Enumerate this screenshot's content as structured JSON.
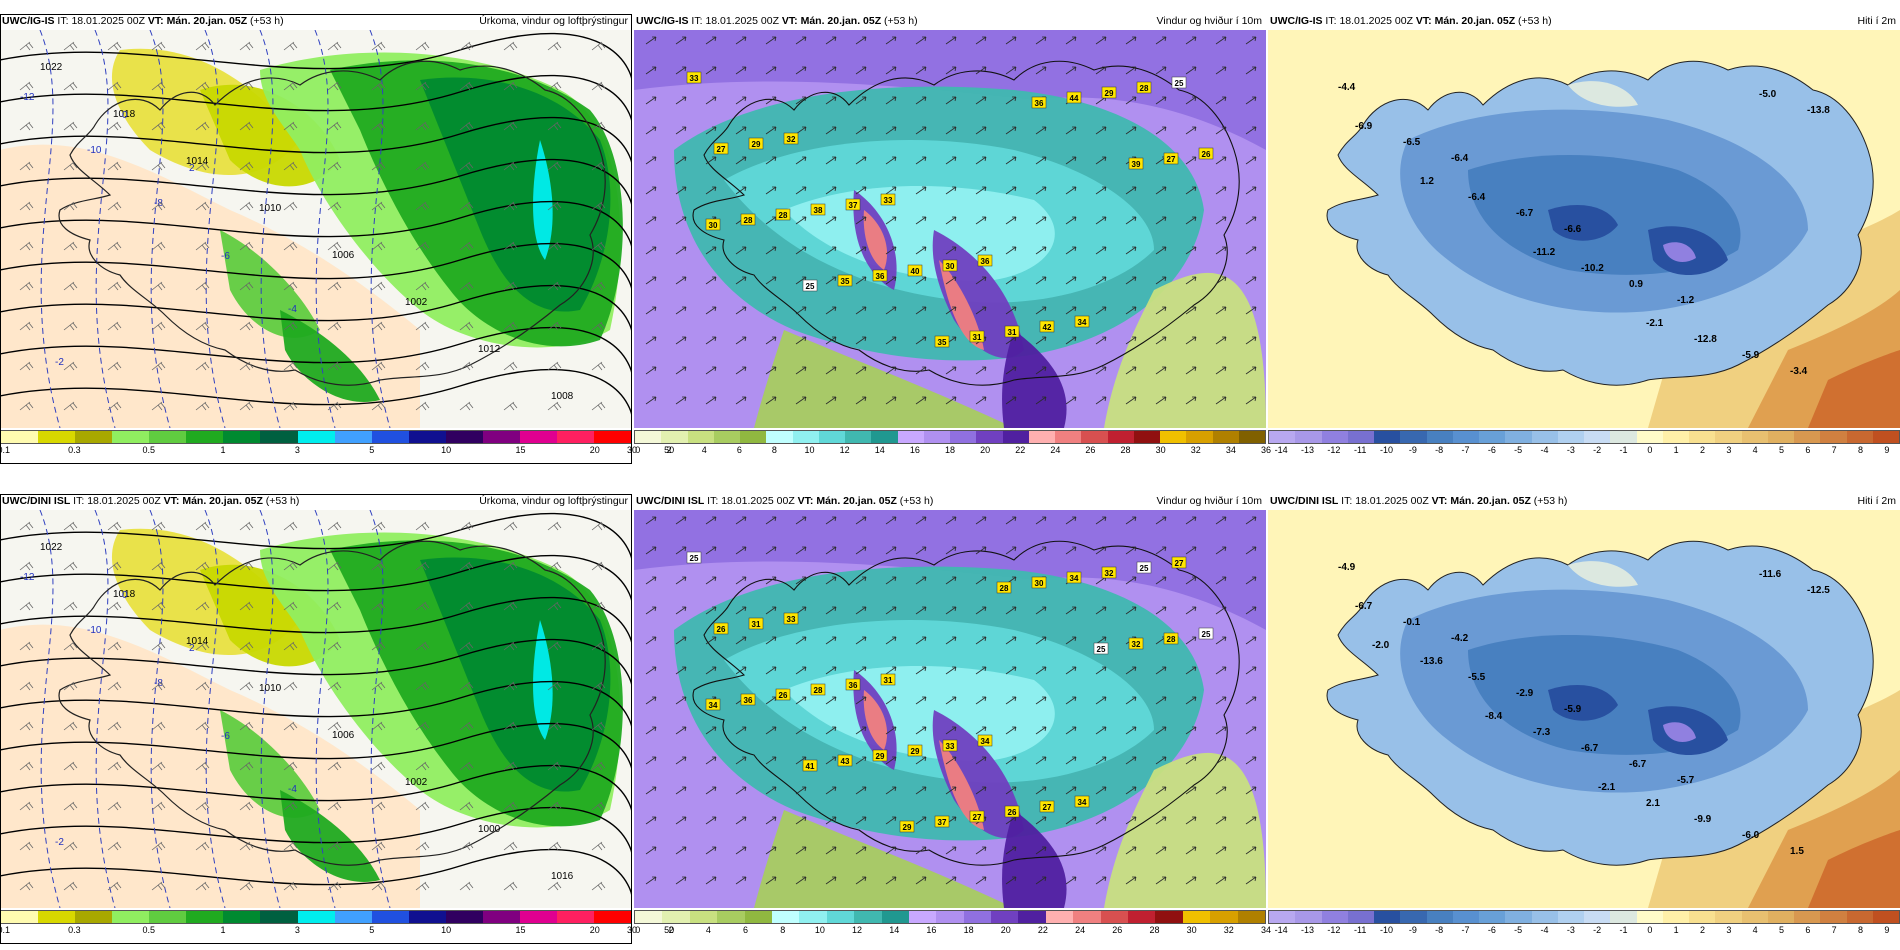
{
  "panels": [
    {
      "id": "p1",
      "model": "UWC/IG-IS",
      "it_label": "IT:",
      "it_value": "18.01.2025 00Z",
      "vt_label": "VT:",
      "vt_value": "Mán. 20.jan. 05Z",
      "lead": "(+53 h)",
      "title": "Úrkoma, vindur og loftþrýstingur",
      "kind": "precip",
      "colorbar": {
        "colors": [
          "#fffbb0",
          "#d8d800",
          "#a8a800",
          "#90ee60",
          "#60cc40",
          "#20aa20",
          "#008a30",
          "#006040",
          "#00eeee",
          "#40a0ff",
          "#2050e0",
          "#101090",
          "#300060",
          "#800080",
          "#e00090",
          "#ff2060",
          "#ff0000"
        ],
        "ticks": [
          "0.1",
          "0.3",
          "0.5",
          "1",
          "3",
          "5",
          "10",
          "15",
          "20",
          "30",
          "50"
        ]
      },
      "isobars": [
        "1022",
        "1018",
        "1014",
        "1010",
        "1006",
        "1002",
        "1012",
        "1008"
      ],
      "isotherms": [
        "-12",
        "-10",
        "-8",
        "-6",
        "-4",
        "-2",
        "0",
        "2"
      ]
    },
    {
      "id": "p2",
      "model": "UWC/IG-IS",
      "it_label": "IT:",
      "it_value": "18.01.2025 00Z",
      "vt_label": "VT:",
      "vt_value": "Mán. 20.jan. 05Z",
      "lead": "(+53 h)",
      "title": "Vindur og hviður í 10m",
      "kind": "wind",
      "colorbar": {
        "colors": [
          "#f4f8d8",
          "#e2f0b0",
          "#c8e080",
          "#a8cc60",
          "#90b840",
          "#c0ffff",
          "#90f0f0",
          "#60d8d8",
          "#40b8b0",
          "#209890",
          "#c8a8ff",
          "#b090f0",
          "#9070e0",
          "#7040c0",
          "#5020a0",
          "#ffb0b0",
          "#f08080",
          "#d85050",
          "#c02030",
          "#901010",
          "#f0c000",
          "#d8a000",
          "#b08000",
          "#806000"
        ],
        "ticks": [
          "0",
          "2",
          "4",
          "6",
          "8",
          "10",
          "12",
          "14",
          "16",
          "18",
          "20",
          "22",
          "24",
          "26",
          "28",
          "30",
          "32",
          "34",
          "36"
        ]
      },
      "gust_labels": [
        "33",
        "32",
        "33",
        "36",
        "34",
        "25",
        "29",
        "37",
        "30",
        "42",
        "28",
        "27",
        "38",
        "40",
        "31",
        "29",
        "26",
        "28",
        "36",
        "31",
        "44",
        "27",
        "28",
        "35",
        "35",
        "36",
        "39",
        "30",
        "25"
      ]
    },
    {
      "id": "p3",
      "model": "UWC/IG-IS",
      "it_label": "IT:",
      "it_value": "18.01.2025 00Z",
      "vt_label": "VT:",
      "vt_value": "Mán. 20.jan. 05Z",
      "lead": "(+53 h)",
      "title": "Hiti í 2m",
      "kind": "temp",
      "colorbar": {
        "colors": [
          "#b8a8f0",
          "#a898e8",
          "#9080e0",
          "#7870d0",
          "#2850a0",
          "#3868b0",
          "#4880c0",
          "#5890d0",
          "#68a0d8",
          "#80b0e0",
          "#98c0e8",
          "#b0d0f0",
          "#c8dcf4",
          "#dce8e0",
          "#fffbc8",
          "#fff0a8",
          "#f8e090",
          "#f0d080",
          "#e8c070",
          "#e0b060",
          "#d89850",
          "#d08040",
          "#c86830",
          "#c05020"
        ],
        "ticks": [
          "-14",
          "-13",
          "-12",
          "-11",
          "-10",
          "-9",
          "-8",
          "-7",
          "-6",
          "-5",
          "-4",
          "-3",
          "-2",
          "-1",
          "0",
          "1",
          "2",
          "3",
          "4",
          "5",
          "6",
          "7",
          "8",
          "9"
        ]
      },
      "temp_labels": [
        "-4.4",
        "-6.4",
        "-6.6",
        "-1.2",
        "-3.4",
        "-6.5",
        "-6.7",
        "0.9",
        "-5.9",
        "-6.9",
        "-6.4",
        "-10.2",
        "-12.8",
        "-13.8",
        "1.2",
        "-11.2",
        "-2.1",
        "-5.0"
      ]
    },
    {
      "id": "p4",
      "model": "UWC/DINI ISL",
      "it_label": "IT:",
      "it_value": "18.01.2025 00Z",
      "vt_label": "VT:",
      "vt_value": "Mán. 20.jan. 05Z",
      "lead": "(+53 h)",
      "title": "Úrkoma, vindur og loftþrýstingur",
      "kind": "precip",
      "colorbar": {
        "colors": [
          "#fffbb0",
          "#d8d800",
          "#a8a800",
          "#90ee60",
          "#60cc40",
          "#20aa20",
          "#008a30",
          "#006040",
          "#00eeee",
          "#40a0ff",
          "#2050e0",
          "#101090",
          "#300060",
          "#800080",
          "#e00090",
          "#ff2060",
          "#ff0000"
        ],
        "ticks": [
          "0.1",
          "0.3",
          "0.5",
          "1",
          "3",
          "5",
          "10",
          "15",
          "20",
          "30",
          "50"
        ]
      },
      "isobars": [
        "1022",
        "1018",
        "1014",
        "1010",
        "1006",
        "1002",
        "1000",
        "1016"
      ],
      "isotherms": [
        "-12",
        "-10",
        "-8",
        "-6",
        "-4",
        "-2",
        "0",
        "2"
      ]
    },
    {
      "id": "p5",
      "model": "UWC/DINI ISL",
      "it_label": "IT:",
      "it_value": "18.01.2025 00Z",
      "vt_label": "VT:",
      "vt_value": "Mán. 20.jan. 05Z",
      "lead": "(+53 h)",
      "title": "Vindur og hviður í 10m",
      "kind": "wind",
      "colorbar": {
        "colors": [
          "#f4f8d8",
          "#e2f0b0",
          "#c8e080",
          "#a8cc60",
          "#90b840",
          "#c0ffff",
          "#90f0f0",
          "#60d8d8",
          "#40b8b0",
          "#209890",
          "#c8a8ff",
          "#b090f0",
          "#9070e0",
          "#7040c0",
          "#5020a0",
          "#ffb0b0",
          "#f08080",
          "#d85050",
          "#c02030",
          "#901010",
          "#f0c000",
          "#d8a000",
          "#b08000"
        ],
        "ticks": [
          "0",
          "2",
          "4",
          "6",
          "8",
          "10",
          "12",
          "14",
          "16",
          "18",
          "20",
          "22",
          "24",
          "26",
          "28",
          "30",
          "32",
          "34"
        ]
      },
      "gust_labels": [
        "25",
        "33",
        "31",
        "34",
        "34",
        "27",
        "31",
        "36",
        "33",
        "27",
        "25",
        "26",
        "28",
        "29",
        "26",
        "32",
        "25",
        "26",
        "29",
        "27",
        "34",
        "28",
        "36",
        "43",
        "37",
        "30",
        "32",
        "34",
        "41",
        "29",
        "28",
        "25"
      ]
    },
    {
      "id": "p6",
      "model": "UWC/DINI ISL",
      "it_label": "IT:",
      "it_value": "18.01.2025 00Z",
      "vt_label": "VT:",
      "vt_value": "Mán. 20.jan. 05Z",
      "lead": "(+53 h)",
      "title": "Hiti í 2m",
      "kind": "temp",
      "colorbar": {
        "colors": [
          "#b8a8f0",
          "#a898e8",
          "#9080e0",
          "#7870d0",
          "#2850a0",
          "#3868b0",
          "#4880c0",
          "#5890d0",
          "#68a0d8",
          "#80b0e0",
          "#98c0e8",
          "#b0d0f0",
          "#c8dcf4",
          "#dce8e0",
          "#fffbc8",
          "#fff0a8",
          "#f8e090",
          "#f0d080",
          "#e8c070",
          "#e0b060",
          "#d89850",
          "#d08040",
          "#c86830",
          "#c05020"
        ],
        "ticks": [
          "-14",
          "-13",
          "-12",
          "-11",
          "-10",
          "-9",
          "-8",
          "-7",
          "-6",
          "-5",
          "-4",
          "-3",
          "-2",
          "-1",
          "0",
          "1",
          "2",
          "3",
          "4",
          "5",
          "6",
          "7",
          "8",
          "9"
        ]
      },
      "temp_labels": [
        "-4.9",
        "-4.2",
        "-5.9",
        "-5.7",
        "1.5",
        "-0.1",
        "-2.9",
        "-6.7",
        "-6.0",
        "-6.7",
        "-5.5",
        "-6.7",
        "-9.9",
        "-12.5",
        "-13.6",
        "-7.3",
        "2.1",
        "-11.6",
        "-2.0",
        "-8.4",
        "-2.1"
      ]
    }
  ]
}
